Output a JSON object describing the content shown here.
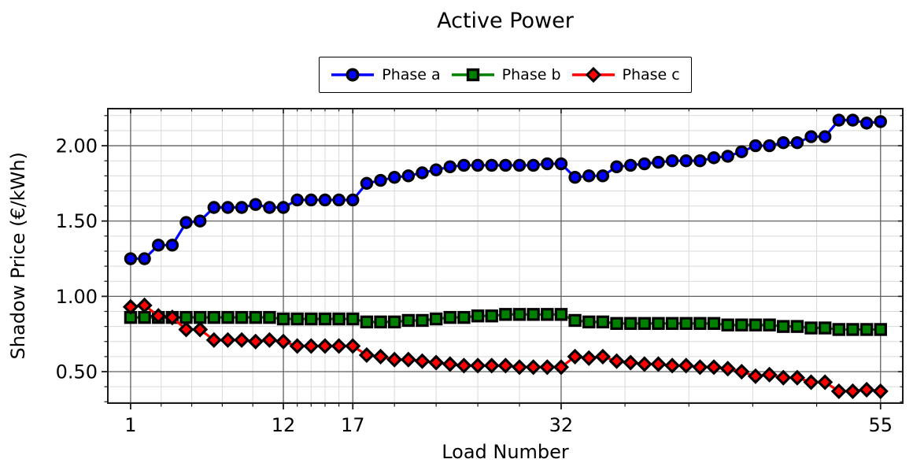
{
  "chart": {
    "title": "Active Power",
    "xlabel": "Load Number",
    "ylabel": "Shadow Price (€/kWh)"
  },
  "chart_data": {
    "type": "line",
    "title": "Active Power",
    "xlabel": "Load Number",
    "ylabel": "Shadow Price (€/kWh)",
    "legend_position": "top-center-outside",
    "grid": true,
    "xlim": [
      -0.64,
      56.6
    ],
    "ylim": [
      0.291,
      2.246
    ],
    "x_ticks": [
      1,
      12,
      17,
      32,
      55
    ],
    "x_tick_labels": [
      "1",
      "12",
      "17",
      "32",
      "55"
    ],
    "x_minor_ticks": [
      3.2,
      5.4,
      7.6,
      9.8,
      13,
      14,
      15,
      16,
      20,
      23,
      26,
      29,
      36.6,
      41.2,
      45.8,
      50.4
    ],
    "y_ticks": [
      0.5,
      1.0,
      1.5,
      2.0
    ],
    "y_tick_labels": [
      "0.50",
      "1.00",
      "1.50",
      "2.00"
    ],
    "y_minor_ticks": [
      0.3,
      0.4,
      0.6,
      0.7,
      0.8,
      0.9,
      1.1,
      1.2,
      1.3,
      1.4,
      1.6,
      1.7,
      1.8,
      1.9,
      2.1,
      2.2
    ],
    "x": [
      1,
      2,
      3,
      4,
      5,
      6,
      7,
      8,
      9,
      10,
      11,
      12,
      13,
      14,
      15,
      16,
      17,
      18,
      19,
      20,
      21,
      22,
      23,
      24,
      25,
      26,
      27,
      28,
      29,
      30,
      31,
      32,
      33,
      34,
      35,
      36,
      37,
      38,
      39,
      40,
      41,
      42,
      43,
      44,
      45,
      46,
      47,
      48,
      49,
      50,
      51,
      52,
      53,
      54,
      55
    ],
    "series": [
      {
        "name": "Phase a",
        "color": "#0000ff",
        "marker": "circle",
        "values": [
          1.25,
          1.25,
          1.34,
          1.34,
          1.49,
          1.5,
          1.59,
          1.59,
          1.59,
          1.61,
          1.59,
          1.59,
          1.64,
          1.64,
          1.64,
          1.64,
          1.64,
          1.75,
          1.77,
          1.79,
          1.8,
          1.82,
          1.84,
          1.86,
          1.87,
          1.87,
          1.87,
          1.87,
          1.87,
          1.87,
          1.88,
          1.88,
          1.79,
          1.8,
          1.8,
          1.86,
          1.87,
          1.88,
          1.89,
          1.9,
          1.9,
          1.9,
          1.92,
          1.93,
          1.96,
          2.0,
          2.0,
          2.02,
          2.02,
          2.06,
          2.06,
          2.17,
          2.17,
          2.15,
          2.16
        ]
      },
      {
        "name": "Phase b",
        "color": "#008000",
        "marker": "square",
        "values": [
          0.86,
          0.86,
          0.86,
          0.86,
          0.86,
          0.86,
          0.86,
          0.86,
          0.86,
          0.86,
          0.86,
          0.85,
          0.85,
          0.85,
          0.85,
          0.85,
          0.85,
          0.83,
          0.83,
          0.83,
          0.84,
          0.84,
          0.85,
          0.86,
          0.86,
          0.87,
          0.87,
          0.88,
          0.88,
          0.88,
          0.88,
          0.88,
          0.84,
          0.83,
          0.83,
          0.82,
          0.82,
          0.82,
          0.82,
          0.82,
          0.82,
          0.82,
          0.82,
          0.81,
          0.81,
          0.81,
          0.81,
          0.8,
          0.8,
          0.79,
          0.79,
          0.78,
          0.78,
          0.78,
          0.78
        ]
      },
      {
        "name": "Phase c",
        "color": "#ff0000",
        "marker": "diamond",
        "values": [
          0.93,
          0.94,
          0.87,
          0.86,
          0.78,
          0.78,
          0.71,
          0.71,
          0.71,
          0.7,
          0.71,
          0.7,
          0.67,
          0.67,
          0.67,
          0.67,
          0.67,
          0.61,
          0.6,
          0.58,
          0.58,
          0.57,
          0.56,
          0.55,
          0.54,
          0.54,
          0.54,
          0.54,
          0.53,
          0.53,
          0.53,
          0.53,
          0.6,
          0.59,
          0.6,
          0.57,
          0.56,
          0.55,
          0.55,
          0.54,
          0.54,
          0.53,
          0.53,
          0.52,
          0.5,
          0.47,
          0.48,
          0.46,
          0.46,
          0.43,
          0.43,
          0.37,
          0.37,
          0.38,
          0.37
        ]
      }
    ],
    "style": {
      "marker_edge_color": "#000000",
      "major_grid_color": "#5f5f5f",
      "minor_grid_color": "#d9d9d9",
      "spine_color": "#1a1a1a"
    }
  }
}
